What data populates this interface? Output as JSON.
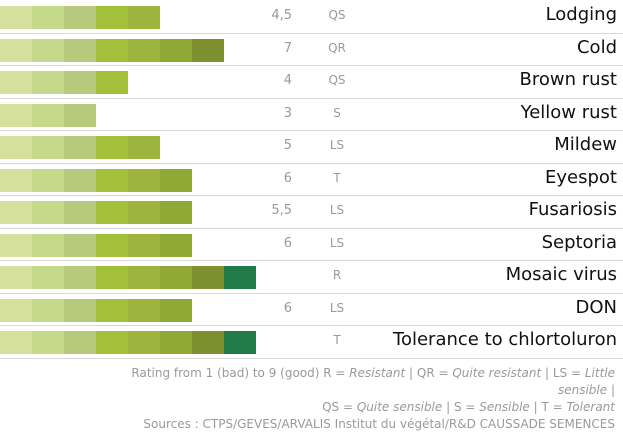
{
  "palette": [
    "#d4e09b",
    "#c5d98a",
    "#b7c97c",
    "#a3c03a",
    "#9db43f",
    "#8fa836",
    "#7d8f2e",
    "#217a48"
  ],
  "rows": [
    {
      "label": "Lodging",
      "score": "4,5",
      "code": "QS",
      "segments": 5
    },
    {
      "label": "Cold",
      "score": "7",
      "code": "QR",
      "segments": 7
    },
    {
      "label": "Brown rust",
      "score": "4",
      "code": "QS",
      "segments": 4
    },
    {
      "label": "Yellow rust",
      "score": "3",
      "code": "S",
      "segments": 3
    },
    {
      "label": "Mildew",
      "score": "5",
      "code": "LS",
      "segments": 5
    },
    {
      "label": "Eyespot",
      "score": "6",
      "code": "T",
      "segments": 6
    },
    {
      "label": "Fusariosis",
      "score": "5,5",
      "code": "LS",
      "segments": 6
    },
    {
      "label": "Septoria",
      "score": "6",
      "code": "LS",
      "segments": 6
    },
    {
      "label": "Mosaic virus",
      "score": "",
      "code": "R",
      "segments": 8
    },
    {
      "label": "DON",
      "score": "6",
      "code": "LS",
      "segments": 6
    },
    {
      "label": "Tolerance to chlortoluron",
      "score": "",
      "code": "T",
      "segments": 8
    }
  ],
  "footer": {
    "line1_prefix": "Rating from 1 (bad) to 9 (good) R = ",
    "r_def": "Resistant",
    "qr_prefix": " | QR = ",
    "qr_def": "Quite resistant",
    "ls_prefix": " | LS = ",
    "ls_def": "Little sensible",
    "line1_suffix": " |",
    "qs_prefix": "QS = ",
    "qs_def": "Quite sensible",
    "s_prefix": " | S = ",
    "s_def": "Sensible",
    "t_prefix": " | T = ",
    "t_def": "Tolerant",
    "sources": "Sources : CTPS/GEVES/ARVALIS Institut du végétal/R&D CAUSSADE SEMENCES"
  }
}
